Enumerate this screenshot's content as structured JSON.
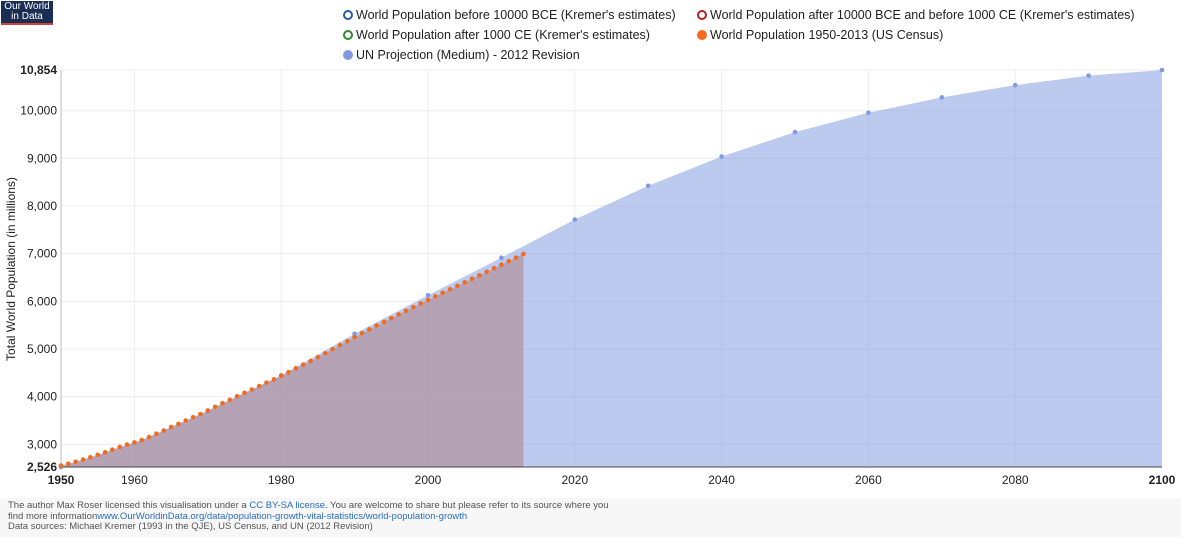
{
  "logo": {
    "line1": "Our World",
    "line2": "in Data"
  },
  "chart_data": {
    "type": "area",
    "ylabel": "Total World Population (in millions)",
    "xlim": [
      1950,
      2100
    ],
    "ylim": [
      2526,
      10854
    ],
    "y_min_label": "2,526",
    "y_max_label": "10,854",
    "x_ticks": [
      {
        "value": 1950,
        "label": "1950",
        "bold": true
      },
      {
        "value": 1960,
        "label": "1960",
        "bold": false
      },
      {
        "value": 1980,
        "label": "1980",
        "bold": false
      },
      {
        "value": 2000,
        "label": "2000",
        "bold": false
      },
      {
        "value": 2020,
        "label": "2020",
        "bold": false
      },
      {
        "value": 2040,
        "label": "2040",
        "bold": false
      },
      {
        "value": 2060,
        "label": "2060",
        "bold": false
      },
      {
        "value": 2080,
        "label": "2080",
        "bold": false
      },
      {
        "value": 2100,
        "label": "2100",
        "bold": true
      }
    ],
    "y_ticks": [
      {
        "value": 2526,
        "label": "2,526",
        "bold": true
      },
      {
        "value": 3000,
        "label": "3,000",
        "bold": false
      },
      {
        "value": 4000,
        "label": "4,000",
        "bold": false
      },
      {
        "value": 5000,
        "label": "5,000",
        "bold": false
      },
      {
        "value": 6000,
        "label": "6,000",
        "bold": false
      },
      {
        "value": 7000,
        "label": "7,000",
        "bold": false
      },
      {
        "value": 8000,
        "label": "8,000",
        "bold": false
      },
      {
        "value": 9000,
        "label": "9,000",
        "bold": false
      },
      {
        "value": 10000,
        "label": "10,000",
        "bold": false
      },
      {
        "value": 10854,
        "label": "10,854",
        "bold": true
      }
    ],
    "legend_placement": "top",
    "series": [
      {
        "name": "World Population before 10000 BCE (Kremer's estimates)",
        "color": "#2c5aa0",
        "marker": "hollow",
        "x": [],
        "y": []
      },
      {
        "name": "World Population after 10000 BCE and before 1000 CE (Kremer's estimates)",
        "color": "#b22222",
        "marker": "hollow",
        "x": [],
        "y": []
      },
      {
        "name": "World Population after 1000 CE (Kremer's estimates)",
        "color": "#2e8b2e",
        "marker": "hollow",
        "x": [],
        "y": []
      },
      {
        "name": "World Population 1950-2013 (US Census)",
        "color": "#f26b1d",
        "marker": "filled",
        "x": [
          1950,
          1951,
          1952,
          1953,
          1954,
          1955,
          1956,
          1957,
          1958,
          1959,
          1960,
          1961,
          1962,
          1963,
          1964,
          1965,
          1966,
          1967,
          1968,
          1969,
          1970,
          1971,
          1972,
          1973,
          1974,
          1975,
          1976,
          1977,
          1978,
          1979,
          1980,
          1981,
          1982,
          1983,
          1984,
          1985,
          1986,
          1987,
          1988,
          1989,
          1990,
          1991,
          1992,
          1993,
          1994,
          1995,
          1996,
          1997,
          1998,
          1999,
          2000,
          2001,
          2002,
          2003,
          2004,
          2005,
          2006,
          2007,
          2008,
          2009,
          2010,
          2011,
          2012,
          2013
        ],
        "y": [
          2557,
          2594,
          2636,
          2681,
          2729,
          2781,
          2834,
          2890,
          2946,
          2996,
          3042,
          3091,
          3153,
          3224,
          3291,
          3364,
          3429,
          3501,
          3569,
          3638,
          3712,
          3786,
          3864,
          3935,
          4009,
          4083,
          4152,
          4224,
          4296,
          4365,
          4440,
          4515,
          4597,
          4673,
          4750,
          4832,
          4914,
          4998,
          5083,
          5166,
          5250,
          5332,
          5413,
          5492,
          5570,
          5649,
          5726,
          5803,
          5879,
          5955,
          6030,
          6106,
          6180,
          6254,
          6327,
          6400,
          6474,
          6547,
          6621,
          6695,
          6769,
          6843,
          6918,
          6993
        ]
      },
      {
        "name": "UN Projection (Medium) - 2012 Revision",
        "color": "#7f9ae0",
        "marker": "filled",
        "x": [
          1950,
          1960,
          1970,
          1980,
          1990,
          2000,
          2010,
          2020,
          2030,
          2040,
          2050,
          2060,
          2070,
          2080,
          2090,
          2100
        ],
        "y": [
          2526,
          3026,
          3691,
          4449,
          5321,
          6128,
          6916,
          7717,
          8425,
          9039,
          9551,
          9957,
          10280,
          10536,
          10736,
          10854
        ]
      }
    ]
  },
  "footer": {
    "line1_prefix": "The author Max Roser licensed this visualisation under a ",
    "license_link": "CC BY-SA license",
    "line1_suffix": ". You are welcome to share but please refer to its source where you",
    "line2_prefix": "find more information",
    "source_link": "www.OurWorldinData.org/data/population-growth-vital-statistics/world-population-growth",
    "line3": "Data sources: Michael Kremer (1993 in the QJE), US Census, and UN (2012 Revision)"
  }
}
